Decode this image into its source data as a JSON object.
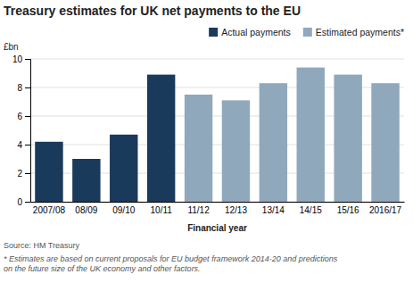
{
  "chart_data": {
    "type": "bar",
    "title": "Treasury estimates for UK net payments to the EU",
    "xlabel": "Financial year",
    "ylabel": "£bn",
    "categories": [
      "2007/08",
      "08/09",
      "09/10",
      "10/11",
      "11/12",
      "12/13",
      "13/14",
      "14/15",
      "15/16",
      "2016/17"
    ],
    "series": [
      {
        "name": "Actual payments",
        "color": "#1a3a5c",
        "values": [
          4.2,
          3.0,
          4.7,
          8.9,
          null,
          null,
          null,
          null,
          null,
          null
        ]
      },
      {
        "name": "Estimated payments*",
        "color": "#8fa8bc",
        "values": [
          null,
          null,
          null,
          null,
          7.5,
          7.1,
          8.3,
          9.4,
          8.9,
          8.3
        ]
      }
    ],
    "stacked": true,
    "ylim": [
      0,
      10
    ],
    "yticks": [
      0,
      2,
      4,
      6,
      8,
      10
    ],
    "grid": true,
    "legend": "upper right",
    "annotations": [
      "Source: HM Treasury",
      "* Estimates are based on current proposals for EU budget framework 2014-20 and predictions\non the future size of the UK economy and other factors."
    ]
  }
}
